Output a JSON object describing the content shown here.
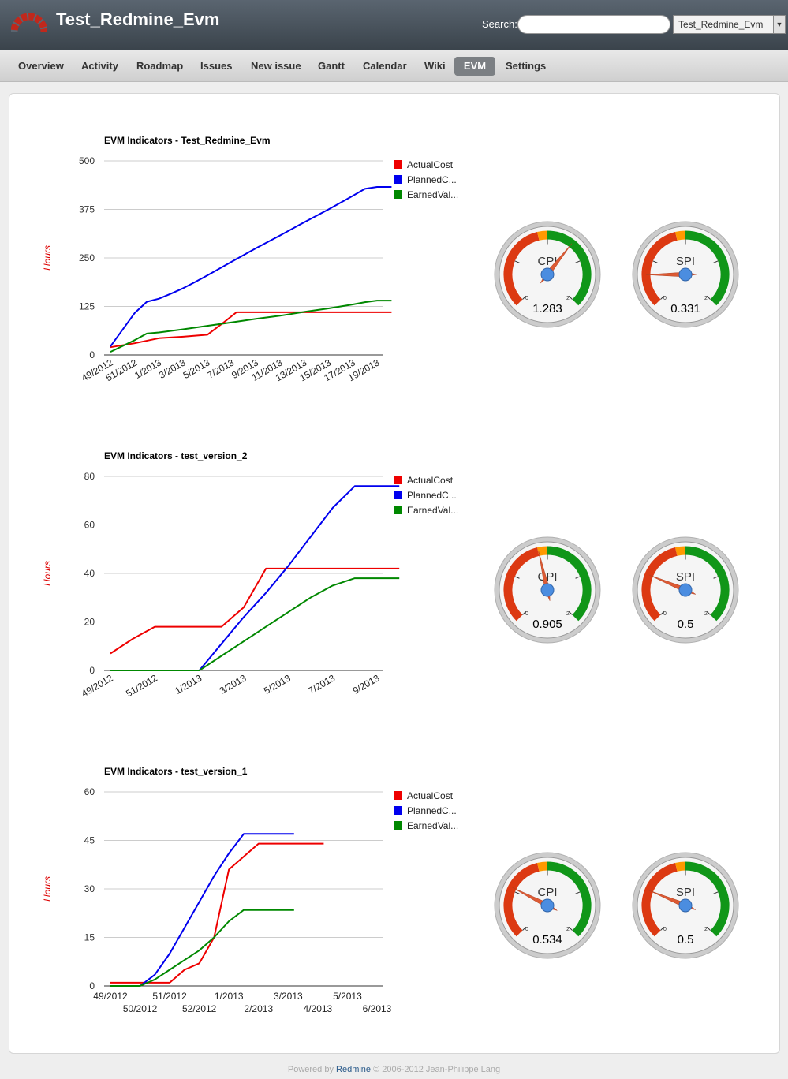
{
  "header": {
    "project_title": "Test_Redmine_Evm",
    "search_label": "Search:",
    "search_placeholder": "",
    "project_jump_value": "Test_Redmine_Evm"
  },
  "menu": {
    "tabs": [
      {
        "label": "Overview",
        "selected": false
      },
      {
        "label": "Activity",
        "selected": false
      },
      {
        "label": "Roadmap",
        "selected": false
      },
      {
        "label": "Issues",
        "selected": false
      },
      {
        "label": "New issue",
        "selected": false
      },
      {
        "label": "Gantt",
        "selected": false
      },
      {
        "label": "Calendar",
        "selected": false
      },
      {
        "label": "Wiki",
        "selected": false
      },
      {
        "label": "EVM",
        "selected": true
      },
      {
        "label": "Settings",
        "selected": false
      }
    ]
  },
  "colors": {
    "actual": "#ee0000",
    "planned": "#0000ee",
    "earned": "#008800",
    "ylabel": "#dd0000",
    "gauge_red": "#dc3912",
    "gauge_orange": "#ff9900",
    "gauge_green": "#109618"
  },
  "chart_data": [
    {
      "type": "line",
      "title": "EVM Indicators - Test_Redmine_Evm",
      "ylabel": "Hours",
      "ylim": [
        0,
        500
      ],
      "yticks": [
        0,
        125,
        250,
        375,
        500
      ],
      "xtick_labels": [
        "49/2012",
        "51/2012",
        "1/2013",
        "3/2013",
        "5/2013",
        "7/2013",
        "9/2013",
        "11/2013",
        "13/2013",
        "15/2013",
        "17/2013",
        "19/2013"
      ],
      "xtick_style": "rotated",
      "legend": [
        "ActualCost",
        "PlannedC...",
        "EarnedVal..."
      ],
      "legend_position": "right",
      "series": [
        {
          "name": "ActualCost",
          "x": [
            0,
            1,
            2,
            3,
            4,
            4.7,
            5.2,
            6,
            7,
            8,
            9,
            10,
            11,
            11.6
          ],
          "values": [
            20,
            30,
            43,
            47,
            52,
            85,
            110,
            110,
            110,
            110,
            110,
            110,
            110,
            110
          ]
        },
        {
          "name": "PlannedC...",
          "x": [
            0,
            1,
            1.5,
            2,
            2.5,
            3,
            3.5,
            4,
            5,
            6,
            7,
            8,
            9,
            10,
            10.5,
            11,
            11.6
          ],
          "values": [
            22,
            108,
            137,
            145,
            158,
            172,
            188,
            205,
            240,
            275,
            308,
            342,
            375,
            410,
            428,
            433,
            433
          ]
        },
        {
          "name": "EarnedVal...",
          "x": [
            0,
            1,
            1.5,
            2,
            3,
            4,
            5,
            6,
            7,
            8,
            9,
            10,
            10.5,
            11,
            11.6
          ],
          "values": [
            8,
            38,
            55,
            58,
            66,
            75,
            84,
            93,
            101,
            111,
            120,
            130,
            136,
            140,
            140
          ]
        }
      ]
    },
    {
      "type": "line",
      "title": "EVM Indicators - test_version_2",
      "ylabel": "Hours",
      "ylim": [
        0,
        80
      ],
      "yticks": [
        0,
        20,
        40,
        60,
        80
      ],
      "xtick_labels": [
        "49/2012",
        "51/2012",
        "1/2013",
        "3/2013",
        "5/2013",
        "7/2013",
        "9/2013"
      ],
      "xtick_style": "rotated",
      "legend": [
        "ActualCost",
        "PlannedC...",
        "EarnedVal..."
      ],
      "legend_position": "right",
      "series": [
        {
          "name": "ActualCost",
          "x": [
            0,
            0.5,
            1,
            1.5,
            2,
            2.5,
            3,
            3.5,
            4,
            4.5,
            5,
            5.5,
            6,
            6.5
          ],
          "values": [
            7,
            13,
            18,
            18,
            18,
            18,
            26,
            42,
            42,
            42,
            42,
            42,
            42,
            42
          ]
        },
        {
          "name": "PlannedC...",
          "x": [
            0,
            1,
            2,
            2.5,
            3,
            3.5,
            4,
            4.5,
            5,
            5.5,
            6,
            6.5
          ],
          "values": [
            0,
            0,
            0,
            11,
            22,
            32,
            43,
            55,
            67,
            76,
            76,
            76
          ]
        },
        {
          "name": "EarnedVal...",
          "x": [
            0,
            1,
            2,
            2.5,
            3,
            3.5,
            4,
            4.5,
            5,
            5.5,
            6,
            6.5
          ],
          "values": [
            0,
            0,
            0,
            6,
            12,
            18,
            24,
            30,
            35,
            38,
            38,
            38
          ]
        }
      ]
    },
    {
      "type": "line",
      "title": "EVM Indicators - test_version_1",
      "ylabel": "Hours",
      "ylim": [
        0,
        60
      ],
      "yticks": [
        0,
        15,
        30,
        45,
        60
      ],
      "xtick_labels": [
        "49/2012",
        "50/2012",
        "51/2012",
        "52/2012",
        "1/2013",
        "2/2013",
        "3/2013",
        "4/2013",
        "5/2013",
        "6/2013"
      ],
      "xtick_style": "staggered",
      "legend": [
        "ActualCost",
        "PlannedC...",
        "EarnedVal..."
      ],
      "legend_position": "right",
      "series": [
        {
          "name": "ActualCost",
          "x": [
            0,
            1,
            1.5,
            2,
            2.5,
            3,
            3.5,
            4,
            5,
            5.5,
            6.5,
            7.2
          ],
          "values": [
            1,
            1,
            1,
            1,
            5,
            7,
            15,
            36,
            44,
            44,
            44,
            44
          ]
        },
        {
          "name": "PlannedC...",
          "x": [
            0,
            0.5,
            1,
            1.5,
            2,
            2.5,
            3,
            3.5,
            4,
            4.5,
            5,
            5.5,
            6.2
          ],
          "values": [
            0,
            0,
            0,
            3.5,
            10,
            18,
            26,
            34,
            41,
            47,
            47,
            47,
            47
          ]
        },
        {
          "name": "EarnedVal...",
          "x": [
            0,
            0.5,
            1,
            1.5,
            2,
            2.5,
            3,
            3.5,
            4,
            4.5,
            5,
            5.5,
            6.2
          ],
          "values": [
            0,
            0,
            0,
            2,
            5,
            8,
            11,
            15,
            20,
            23.5,
            23.5,
            23.5,
            23.5
          ]
        }
      ]
    }
  ],
  "gauges": [
    [
      {
        "label": "CPI",
        "value": 1.283,
        "value_text": "1.283",
        "min_label": "0",
        "max_label": "2"
      },
      {
        "label": "SPI",
        "value": 0.331,
        "value_text": "0.331",
        "min_label": "0",
        "max_label": "2"
      }
    ],
    [
      {
        "label": "CPI",
        "value": 0.905,
        "value_text": "0.905",
        "min_label": "0",
        "max_label": "2"
      },
      {
        "label": "SPI",
        "value": 0.5,
        "value_text": "0.5",
        "min_label": "0",
        "max_label": "2"
      }
    ],
    [
      {
        "label": "CPI",
        "value": 0.534,
        "value_text": "0.534",
        "min_label": "0",
        "max_label": "2"
      },
      {
        "label": "SPI",
        "value": 0.5,
        "value_text": "0.5",
        "min_label": "0",
        "max_label": "2"
      }
    ]
  ],
  "footer": {
    "powered_by": "Powered by",
    "link_text": "Redmine",
    "copyright": "© 2006-2012 Jean-Philippe Lang"
  }
}
